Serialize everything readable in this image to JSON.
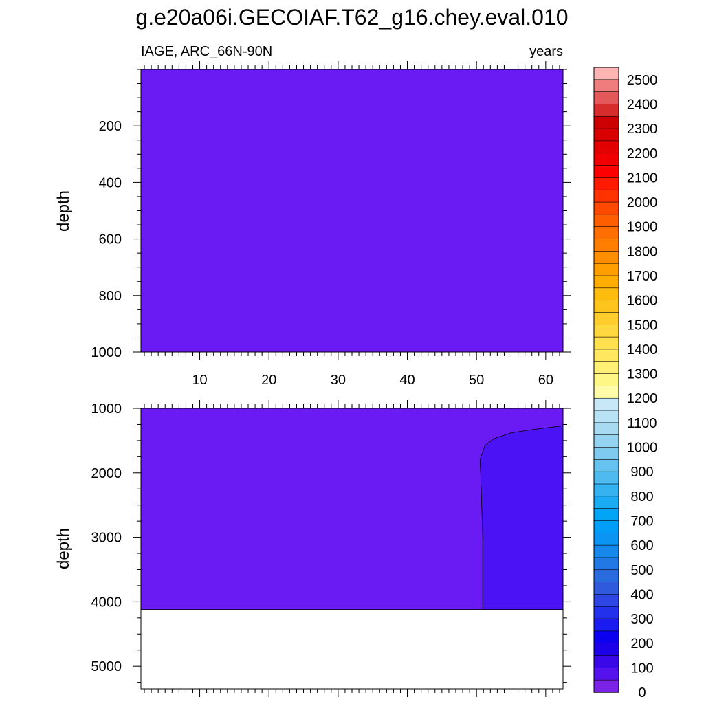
{
  "chart_data": [
    {
      "type": "heatmap",
      "panel": "upper",
      "title": "g.e20a06i.GECOIAF.T62_g16.chey.eval.010",
      "left_string": "IAGE, ARC_66N-90N",
      "right_string": "years",
      "xlabel": "",
      "ylabel": "depth",
      "xlim": [
        1.5,
        62.5
      ],
      "ylim": [
        1000,
        0
      ],
      "xticks": [
        10,
        20,
        30,
        40,
        50,
        60
      ],
      "yticks": [
        200,
        400,
        600,
        800,
        1000
      ],
      "fill_value_range": [
        25,
        50
      ],
      "description_regions": [
        {
          "label": "uniform",
          "value_range": [
            25,
            50
          ]
        }
      ]
    },
    {
      "type": "heatmap",
      "panel": "lower",
      "ylabel": "depth",
      "xlim": [
        1.5,
        62.5
      ],
      "ylim": [
        5350,
        1000
      ],
      "yticks": [
        1000,
        2000,
        3000,
        4000,
        5000
      ],
      "ocean_bottom_depth": 4120,
      "contour_100": [
        [
          50.9,
          4120
        ],
        [
          50.9,
          3000
        ],
        [
          50.6,
          2000
        ],
        [
          50.5,
          1800
        ],
        [
          51.2,
          1580
        ],
        [
          52.5,
          1470
        ],
        [
          55,
          1380
        ],
        [
          58,
          1330
        ],
        [
          62.5,
          1270
        ]
      ],
      "regions": [
        {
          "label": "background",
          "value_range": [
            25,
            50
          ]
        },
        {
          "label": "right-core",
          "value_range": [
            50,
            100
          ]
        }
      ]
    }
  ],
  "colorbar": {
    "labels": [
      "2500",
      "2400",
      "2300",
      "2200",
      "2100",
      "2000",
      "1900",
      "1800",
      "1700",
      "1600",
      "1500",
      "1400",
      "1300",
      "1200",
      "1100",
      "1000",
      "900",
      "800",
      "700",
      "600",
      "500",
      "400",
      "300",
      "200",
      "100",
      "0"
    ],
    "colors": [
      "#FFB4B4",
      "#F07D7D",
      "#E35858",
      "#D72C2C",
      "#CC0000",
      "#D80000",
      "#E30000",
      "#F00000",
      "#FF0000",
      "#FF1A00",
      "#FF3300",
      "#FF4800",
      "#FF5E00",
      "#FF6E00",
      "#FF7E00",
      "#FF8E00",
      "#FF9E00",
      "#FFAE00",
      "#FFBB0E",
      "#FFC51E",
      "#FFCE2E",
      "#FFD73E",
      "#FFE04E",
      "#FFE860",
      "#FFF173",
      "#FFF785",
      "#FFFBA8",
      "#C8E8F8",
      "#B8E2F5",
      "#A8DBF2",
      "#95D4F0",
      "#7FCBF0",
      "#66C2F0",
      "#4FBAF0",
      "#36B2F0",
      "#1AABF2",
      "#00A5F5",
      "#009EF7",
      "#0B94F2",
      "#1788EC",
      "#2279E6",
      "#2A6BE0",
      "#2F5ADB",
      "#2E46E4",
      "#2431EC",
      "#1A1CF0",
      "#0C00F0",
      "#1E00E8",
      "#3A08E6",
      "#5512EC",
      "#7A22E6"
    ]
  },
  "colors": {
    "fill_low": "#6A1AF2",
    "fill_core": "#4A12F4",
    "bottom": "#FFFFFF"
  }
}
